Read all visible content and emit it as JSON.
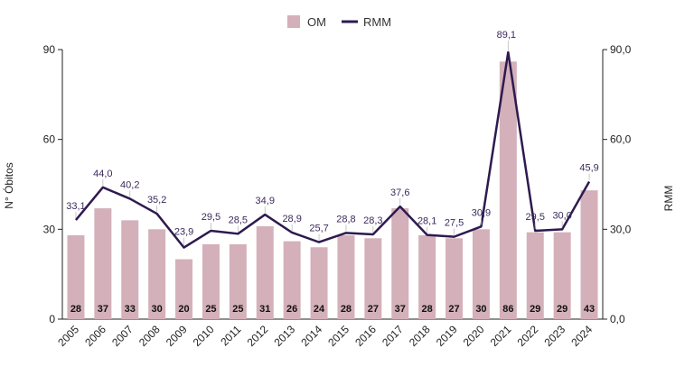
{
  "chart_data": {
    "type": "bar+line",
    "categories": [
      "2005",
      "2006",
      "2007",
      "2008",
      "2009",
      "2010",
      "2011",
      "2012",
      "2013",
      "2014",
      "2015",
      "2016",
      "2017",
      "2018",
      "2019",
      "2020",
      "2021",
      "2022",
      "2023",
      "2024"
    ],
    "series": [
      {
        "name": "OM",
        "type": "bar",
        "axis": "left",
        "values": [
          28,
          37,
          33,
          30,
          20,
          25,
          25,
          31,
          26,
          24,
          28,
          27,
          37,
          28,
          27,
          30,
          86,
          29,
          29,
          43
        ],
        "labels": [
          "28",
          "37",
          "33",
          "30",
          "20",
          "25",
          "25",
          "31",
          "26",
          "24",
          "28",
          "27",
          "37",
          "28",
          "27",
          "30",
          "86",
          "29",
          "29",
          "43"
        ],
        "color": "#d4b0ba"
      },
      {
        "name": "RMM",
        "type": "line",
        "axis": "right",
        "values": [
          33.1,
          44.0,
          40.2,
          35.2,
          23.9,
          29.5,
          28.5,
          34.9,
          28.9,
          25.7,
          28.8,
          28.3,
          37.6,
          28.1,
          27.5,
          30.9,
          89.1,
          29.5,
          30.0,
          45.9
        ],
        "labels": [
          "33,1",
          "44,0",
          "40,2",
          "35,2",
          "23,9",
          "29,5",
          "28,5",
          "34,9",
          "28,9",
          "25,7",
          "28,8",
          "28,3",
          "37,6",
          "28,1",
          "27,5",
          "30,9",
          "89,1",
          "29,5",
          "30,0",
          "45,9"
        ],
        "color": "#2e1a4f"
      }
    ],
    "ylabel": "N° Óbitos",
    "y2label": "RMM",
    "ylim": [
      0,
      90
    ],
    "y2lim": [
      0,
      90
    ],
    "yticks": [
      0,
      30,
      60,
      90
    ],
    "ytick_labels": [
      "0",
      "30",
      "60",
      "90"
    ],
    "y2ticks": [
      0,
      30,
      60,
      90
    ],
    "y2tick_labels": [
      "0,0",
      "30,0",
      "60,0",
      "90,0"
    ],
    "grid": false,
    "legend_position": "top-center"
  }
}
